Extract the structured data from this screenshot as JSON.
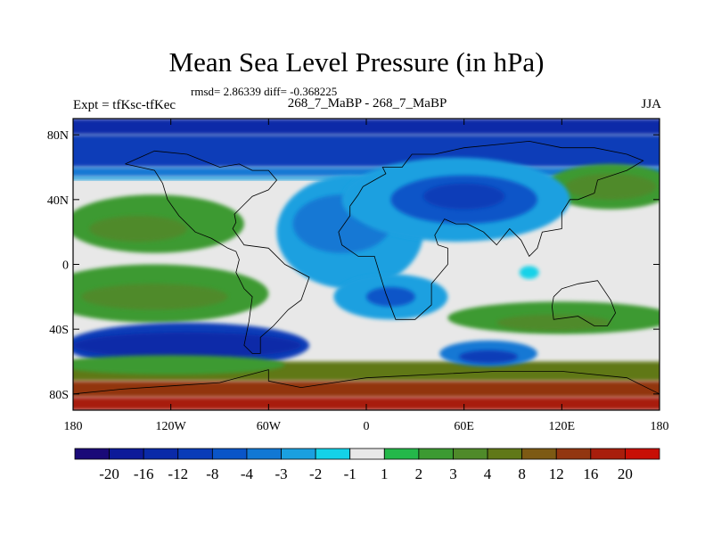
{
  "chart_data": {
    "type": "heatmap",
    "title": "Mean Sea Level Pressure (in hPa)",
    "stats": "rmsd= 2.86339 diff= -0.368225",
    "left_label": "Expt = tfKsc-tfKec",
    "center_label": "268_7_MaBP - 268_7_MaBP",
    "right_label": "JJA",
    "x_ticks": [
      "180",
      "120W",
      "60W",
      "0",
      "60E",
      "120E",
      "180"
    ],
    "x_tick_values": [
      -180,
      -120,
      -60,
      0,
      60,
      120,
      180
    ],
    "y_ticks": [
      "80N",
      "40N",
      "0",
      "40S",
      "80S"
    ],
    "y_tick_values": [
      80,
      40,
      0,
      -40,
      -80
    ],
    "xlim": [
      -180,
      180
    ],
    "ylim": [
      -90,
      90
    ],
    "colorbar_labels": [
      "-20",
      "-16",
      "-12",
      "-8",
      "-4",
      "-3",
      "-2",
      "-1",
      "1",
      "2",
      "3",
      "4",
      "8",
      "12",
      "16",
      "20"
    ],
    "colorbar_colors": [
      "#1a0a78",
      "#0d1a99",
      "#0a2aa8",
      "#0a3cb8",
      "#0a55c8",
      "#1278d4",
      "#1aa0e0",
      "#14d2e8",
      "#e8e8e8",
      "#24b84a",
      "#3c9a32",
      "#4f8a2a",
      "#607818",
      "#7d5a14",
      "#923610",
      "#a81e0c",
      "#c80f05"
    ],
    "bands": [
      {
        "lat": [
          80,
          90
        ],
        "level": -12
      },
      {
        "lat": [
          60,
          80
        ],
        "level": -8
      },
      {
        "lat": [
          54,
          60
        ],
        "level": -3
      },
      {
        "lat": [
          52,
          54
        ],
        "level": -2
      },
      {
        "lat": [
          -60,
          -72
        ],
        "level": 4
      },
      {
        "lat": [
          -72,
          -82
        ],
        "level": 12
      },
      {
        "lat": [
          -82,
          -90
        ],
        "level": 16
      }
    ],
    "blobs": [
      {
        "lon": -130,
        "lat": 25,
        "rlon": 55,
        "rlat": 18,
        "level": 2
      },
      {
        "lon": -140,
        "lat": 22,
        "rlon": 30,
        "rlat": 8,
        "level": 3
      },
      {
        "lon": -130,
        "lat": -18,
        "rlon": 70,
        "rlat": 18,
        "level": 2
      },
      {
        "lon": -130,
        "lat": -20,
        "rlon": 45,
        "rlat": 8,
        "level": 3
      },
      {
        "lon": -110,
        "lat": -50,
        "rlon": 75,
        "rlat": 14,
        "level": -8
      },
      {
        "lon": -110,
        "lat": -50,
        "rlon": 70,
        "rlat": 8,
        "level": -12
      },
      {
        "lon": -120,
        "lat": -62,
        "rlon": 70,
        "rlat": 6,
        "level": 2
      },
      {
        "lon": 150,
        "lat": 48,
        "rlon": 40,
        "rlat": 14,
        "level": 2
      },
      {
        "lon": 150,
        "lat": 48,
        "rlon": 28,
        "rlat": 8,
        "level": 3
      },
      {
        "lon": 120,
        "lat": -33,
        "rlon": 70,
        "rlat": 10,
        "level": 2
      },
      {
        "lon": 115,
        "lat": -36,
        "rlon": 35,
        "rlat": 5,
        "level": 3
      },
      {
        "lon": -10,
        "lat": 20,
        "rlon": 45,
        "rlat": 35,
        "level": -2
      },
      {
        "lon": -15,
        "lat": 25,
        "rlon": 30,
        "rlat": 18,
        "level": -3
      },
      {
        "lon": 10,
        "lat": 35,
        "rlon": 20,
        "rlat": 12,
        "level": -4
      },
      {
        "lon": 55,
        "lat": 40,
        "rlon": 70,
        "rlat": 26,
        "level": -2
      },
      {
        "lon": 60,
        "lat": 40,
        "rlon": 45,
        "rlat": 15,
        "level": -4
      },
      {
        "lon": 60,
        "lat": 42,
        "rlon": 25,
        "rlat": 8,
        "level": -8
      },
      {
        "lon": 15,
        "lat": -20,
        "rlon": 35,
        "rlat": 14,
        "level": -2
      },
      {
        "lon": 15,
        "lat": -20,
        "rlon": 15,
        "rlat": 6,
        "level": -4
      },
      {
        "lon": 75,
        "lat": -55,
        "rlon": 30,
        "rlat": 8,
        "level": -3
      },
      {
        "lon": 75,
        "lat": -57,
        "rlon": 18,
        "rlat": 4,
        "level": -8
      },
      {
        "lon": 100,
        "lat": -5,
        "rlon": 6,
        "rlat": 4,
        "level": -1
      }
    ],
    "coastlines": [
      [
        [
          -148,
          62
        ],
        [
          -130,
          58
        ],
        [
          -125,
          50
        ],
        [
          -122,
          40
        ],
        [
          -115,
          30
        ],
        [
          -105,
          20
        ],
        [
          -95,
          16
        ],
        [
          -85,
          10
        ],
        [
          -80,
          8
        ],
        [
          -78,
          3
        ],
        [
          -80,
          -5
        ],
        [
          -75,
          -15
        ],
        [
          -70,
          -20
        ],
        [
          -72,
          -35
        ],
        [
          -75,
          -50
        ],
        [
          -70,
          -55
        ],
        [
          -65,
          -55
        ],
        [
          -65,
          -45
        ],
        [
          -57,
          -38
        ],
        [
          -48,
          -28
        ],
        [
          -40,
          -22
        ],
        [
          -35,
          -8
        ],
        [
          -50,
          0
        ],
        [
          -60,
          10
        ],
        [
          -75,
          12
        ],
        [
          -82,
          22
        ],
        [
          -80,
          26
        ],
        [
          -81,
          31
        ],
        [
          -76,
          36
        ],
        [
          -70,
          42
        ],
        [
          -60,
          46
        ],
        [
          -55,
          52
        ],
        [
          -60,
          58
        ],
        [
          -70,
          58
        ],
        [
          -78,
          62
        ],
        [
          -90,
          60
        ],
        [
          -95,
          62
        ],
        [
          -110,
          68
        ],
        [
          -130,
          70
        ],
        [
          -148,
          62
        ]
      ],
      [
        [
          -10,
          36
        ],
        [
          -5,
          43
        ],
        [
          -2,
          48
        ],
        [
          5,
          52
        ],
        [
          12,
          56
        ],
        [
          10,
          60
        ],
        [
          22,
          60
        ],
        [
          28,
          68
        ],
        [
          42,
          68
        ],
        [
          60,
          72
        ],
        [
          80,
          74
        ],
        [
          100,
          76
        ],
        [
          120,
          72
        ],
        [
          140,
          72
        ],
        [
          160,
          68
        ],
        [
          170,
          64
        ],
        [
          160,
          58
        ],
        [
          142,
          52
        ],
        [
          140,
          44
        ],
        [
          130,
          40
        ],
        [
          125,
          40
        ],
        [
          120,
          32
        ],
        [
          120,
          22
        ],
        [
          108,
          20
        ],
        [
          105,
          10
        ],
        [
          100,
          5
        ],
        [
          95,
          15
        ],
        [
          88,
          22
        ],
        [
          80,
          12
        ],
        [
          72,
          20
        ],
        [
          62,
          25
        ],
        [
          55,
          25
        ],
        [
          48,
          28
        ],
        [
          42,
          18
        ],
        [
          44,
          12
        ],
        [
          50,
          10
        ],
        [
          50,
          0
        ],
        [
          40,
          -12
        ],
        [
          40,
          -25
        ],
        [
          30,
          -34
        ],
        [
          18,
          -34
        ],
        [
          12,
          -18
        ],
        [
          8,
          -5
        ],
        [
          5,
          5
        ],
        [
          -5,
          5
        ],
        [
          -15,
          12
        ],
        [
          -17,
          20
        ],
        [
          -10,
          30
        ],
        [
          -10,
          36
        ]
      ],
      [
        [
          115,
          -20
        ],
        [
          120,
          -15
        ],
        [
          130,
          -12
        ],
        [
          142,
          -10
        ],
        [
          150,
          -22
        ],
        [
          153,
          -30
        ],
        [
          148,
          -38
        ],
        [
          140,
          -38
        ],
        [
          130,
          -32
        ],
        [
          115,
          -34
        ],
        [
          114,
          -26
        ],
        [
          115,
          -20
        ]
      ],
      [
        [
          -180,
          -80
        ],
        [
          -150,
          -77
        ],
        [
          -120,
          -75
        ],
        [
          -90,
          -73
        ],
        [
          -60,
          -65
        ],
        [
          -60,
          -72
        ],
        [
          -40,
          -76
        ],
        [
          -20,
          -73
        ],
        [
          0,
          -70
        ],
        [
          40,
          -68
        ],
        [
          80,
          -66
        ],
        [
          120,
          -66
        ],
        [
          160,
          -70
        ],
        [
          170,
          -75
        ],
        [
          180,
          -80
        ]
      ]
    ]
  }
}
